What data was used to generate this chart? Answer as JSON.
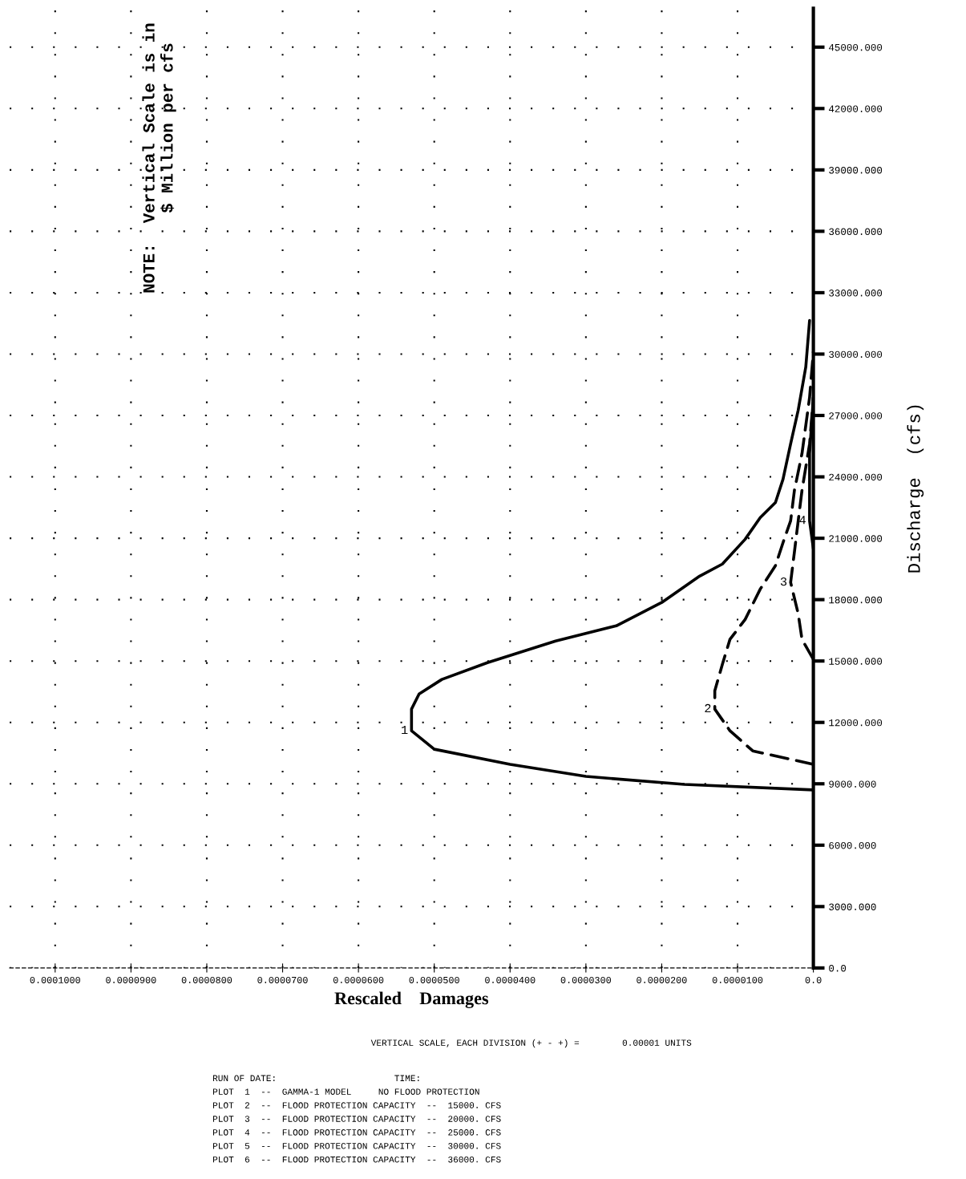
{
  "chart_data": {
    "type": "line",
    "xlabel": "Rescaled    Damages",
    "ylabel": "Discharge  (cfs)",
    "orientation": "horizontal",
    "xlim": [
      0.000106,
      0
    ],
    "ylim": [
      0,
      46900
    ],
    "xticks": [
      {
        "value": 0,
        "label": "0.0"
      },
      {
        "value": 1e-05,
        "label": "0.0000100"
      },
      {
        "value": 2e-05,
        "label": "0.0000200"
      },
      {
        "value": 3e-05,
        "label": "0.0000300"
      },
      {
        "value": 4e-05,
        "label": "0.0000400"
      },
      {
        "value": 5e-05,
        "label": "0.0000500"
      },
      {
        "value": 6e-05,
        "label": "0.0000600"
      },
      {
        "value": 7e-05,
        "label": "0.0000700"
      },
      {
        "value": 8e-05,
        "label": "0.0000800"
      },
      {
        "value": 9e-05,
        "label": "0.0000900"
      },
      {
        "value": 0.0001,
        "label": "0.0001000"
      }
    ],
    "yticks": [
      {
        "value": 0,
        "label": "0.0"
      },
      {
        "value": 3000,
        "label": "3000.000"
      },
      {
        "value": 6000,
        "label": "6000.000"
      },
      {
        "value": 9000,
        "label": "9000.000"
      },
      {
        "value": 12000,
        "label": "12000.000"
      },
      {
        "value": 15000,
        "label": "15000.000"
      },
      {
        "value": 18000,
        "label": "18000.000"
      },
      {
        "value": 21000,
        "label": "21000.000"
      },
      {
        "value": 24000,
        "label": "24000.000"
      },
      {
        "value": 27000,
        "label": "27000.000"
      },
      {
        "value": 30000,
        "label": "30000.000"
      },
      {
        "value": 33000,
        "label": "33000.000"
      },
      {
        "value": 36000,
        "label": "36000.000"
      },
      {
        "value": 39000,
        "label": "39000.000"
      },
      {
        "value": 42000,
        "label": "42000.000"
      },
      {
        "value": 45000,
        "label": "45000.000"
      }
    ],
    "grid": true,
    "marker": "none",
    "series": [
      {
        "name": "1",
        "color": "#000000",
        "line_style": "solid",
        "x": [
          8700,
          8970,
          9360,
          9950,
          10690,
          11590,
          12650,
          13390,
          14100,
          14920,
          15980,
          16720,
          17860,
          19150,
          19740,
          20950,
          22010,
          22750,
          23890,
          25610,
          27260,
          29370,
          31640
        ],
        "values": [
          0.0,
          1.7e-05,
          3e-05,
          4e-05,
          5e-05,
          5.3e-05,
          5.3e-05,
          5.2e-05,
          4.9e-05,
          4.3e-05,
          3.4e-05,
          2.6e-05,
          2e-05,
          1.5e-05,
          1.2e-05,
          9e-06,
          7e-06,
          5e-06,
          4e-06,
          3e-06,
          2e-06,
          1e-06,
          5e-07
        ]
      },
      {
        "name": "2",
        "color": "#000000",
        "line_style": "dashed",
        "x": [
          9950,
          10610,
          11590,
          12650,
          13550,
          14840,
          16060,
          17030,
          18520,
          19660,
          20790,
          21850,
          23340,
          25140,
          27880,
          30110
        ],
        "values": [
          0.0,
          8e-06,
          1.1e-05,
          1.3e-05,
          1.3e-05,
          1.2e-05,
          1.1e-05,
          9e-06,
          7e-06,
          5e-06,
          4e-06,
          3e-06,
          2.5e-06,
          1.5e-06,
          5e-07,
          0.0
        ]
      },
      {
        "name": "3",
        "color": "#000000",
        "line_style": "dashed",
        "x": [
          15080,
          16060,
          17310,
          18840,
          20330,
          21850,
          23340,
          25610,
          27880
        ],
        "values": [
          0.0,
          1.5e-06,
          2e-06,
          3e-06,
          2.5e-06,
          2e-06,
          1.5e-06,
          5e-07,
          0.0
        ]
      },
      {
        "name": "4",
        "color": "#000000",
        "line_style": "solid",
        "x": [
          20480,
          21850,
          23340,
          25140,
          27880
        ],
        "values": [
          0.0,
          5e-07,
          5e-07,
          5e-07,
          0.0
        ]
      }
    ],
    "annotations": [
      "NOTE:  Vertical Scale is in\n        $ Million per cfs",
      "VERTICAL SCALE, EACH DIVISION (+ - +) =        0.00001 UNITS",
      "RUN OF DATE:                      TIME:",
      "PLOT  1  --  GAMMA-1 MODEL     NO FLOOD PROTECTION",
      "PLOT  2  --  FLOOD PROTECTION CAPACITY  --  15000. CFS",
      "PLOT  3  --  FLOOD PROTECTION CAPACITY  --  20000. CFS",
      "PLOT  4  --  FLOOD PROTECTION CAPACITY  --  25000. CFS",
      "PLOT  5  --  FLOOD PROTECTION CAPACITY  --  30000. CFS",
      "PLOT  6  --  FLOOD PROTECTION CAPACITY  --  36000. CFS"
    ]
  }
}
